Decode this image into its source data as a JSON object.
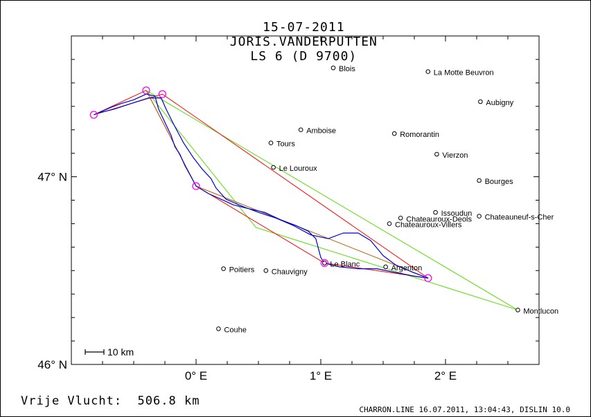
{
  "header": {
    "date": "15-07-2011",
    "pilot": "JORIS.VANDERPUTTEN",
    "glider": "LS 6 (D 9700)"
  },
  "footer": {
    "free_flight_label": "Vrije Vlucht:",
    "free_flight_value": "506.8 km",
    "credit": "CHARRON.LINE 16.07.2011, 13:04:43, DISLIN 10.0"
  },
  "map": {
    "scale_label": "10 km",
    "lat_labels": [
      {
        "text": "47° N",
        "lat": 47.0
      },
      {
        "text": "46° N",
        "lat": 46.0
      }
    ],
    "lon_labels": [
      {
        "text": "0° E",
        "lon": 0.0
      },
      {
        "text": "1° E",
        "lon": 1.0
      },
      {
        "text": "2° E",
        "lon": 2.0
      }
    ],
    "bounds": {
      "lon_min": -1.0,
      "lon_max": 2.75,
      "lat_min": 46.0,
      "lat_max": 47.75
    },
    "cities": [
      {
        "name": "Blois",
        "lon": 1.1,
        "lat": 47.58
      },
      {
        "name": "La Motte Beuvron",
        "lon": 1.86,
        "lat": 47.56
      },
      {
        "name": "Aubigny",
        "lon": 2.28,
        "lat": 47.4
      },
      {
        "name": "Amboise",
        "lon": 0.84,
        "lat": 47.25
      },
      {
        "name": "Romorantin",
        "lon": 1.59,
        "lat": 47.23
      },
      {
        "name": "Tours",
        "lon": 0.6,
        "lat": 47.18
      },
      {
        "name": "Vierzon",
        "lon": 1.93,
        "lat": 47.12
      },
      {
        "name": "Le Louroux",
        "lon": 0.62,
        "lat": 47.05
      },
      {
        "name": "Bourges",
        "lon": 2.27,
        "lat": 46.98
      },
      {
        "name": "Issoudun",
        "lon": 1.92,
        "lat": 46.81
      },
      {
        "name": "Chateauneuf-s-Cher",
        "lon": 2.27,
        "lat": 46.79
      },
      {
        "name": "Chateauroux-Deols",
        "lon": 1.64,
        "lat": 46.78
      },
      {
        "name": "Chateauroux-Villers",
        "lon": 1.55,
        "lat": 46.75
      },
      {
        "name": "Le Blanc",
        "lon": 1.03,
        "lat": 46.54
      },
      {
        "name": "Argenton",
        "lon": 1.52,
        "lat": 46.52
      },
      {
        "name": "Poitiers",
        "lon": 0.22,
        "lat": 46.51
      },
      {
        "name": "Chauvigny",
        "lon": 0.56,
        "lat": 46.5
      },
      {
        "name": "Montlucon",
        "lon": 2.58,
        "lat": 46.29
      },
      {
        "name": "Couhe",
        "lon": 0.18,
        "lat": 46.19
      }
    ],
    "turnpoints": [
      {
        "lon": -0.82,
        "lat": 47.33
      },
      {
        "lon": -0.4,
        "lat": 47.46
      },
      {
        "lon": -0.27,
        "lat": 47.44
      },
      {
        "lon": 0.0,
        "lat": 46.95
      },
      {
        "lon": 1.03,
        "lat": 46.54
      },
      {
        "lon": 1.86,
        "lat": 46.46
      }
    ],
    "task_red": [
      {
        "lon": -0.82,
        "lat": 47.33
      },
      {
        "lon": -0.4,
        "lat": 47.46
      },
      {
        "lon": 0.0,
        "lat": 46.95
      },
      {
        "lon": 1.03,
        "lat": 46.54
      },
      {
        "lon": 1.86,
        "lat": 46.46
      },
      {
        "lon": -0.27,
        "lat": 47.44
      },
      {
        "lon": -0.82,
        "lat": 47.33
      }
    ],
    "task_orange": [
      {
        "lon": -0.4,
        "lat": 47.46
      },
      {
        "lon": 0.0,
        "lat": 46.95
      },
      {
        "lon": 1.86,
        "lat": 46.46
      }
    ],
    "task_green": [
      {
        "lon": -0.4,
        "lat": 47.46
      },
      {
        "lon": 0.48,
        "lat": 46.73
      },
      {
        "lon": 2.58,
        "lat": 46.29
      },
      {
        "lon": -0.4,
        "lat": 47.46
      }
    ],
    "track_blue": [
      {
        "lon": -0.82,
        "lat": 47.33
      },
      {
        "lon": -0.75,
        "lat": 47.35
      },
      {
        "lon": -0.68,
        "lat": 47.37
      },
      {
        "lon": -0.6,
        "lat": 47.39
      },
      {
        "lon": -0.5,
        "lat": 47.41
      },
      {
        "lon": -0.4,
        "lat": 47.44
      },
      {
        "lon": -0.33,
        "lat": 47.43
      },
      {
        "lon": -0.3,
        "lat": 47.36
      },
      {
        "lon": -0.25,
        "lat": 47.29
      },
      {
        "lon": -0.2,
        "lat": 47.22
      },
      {
        "lon": -0.17,
        "lat": 47.16
      },
      {
        "lon": -0.13,
        "lat": 47.12
      },
      {
        "lon": -0.09,
        "lat": 47.06
      },
      {
        "lon": -0.04,
        "lat": 47.0
      },
      {
        "lon": 0.0,
        "lat": 46.95
      },
      {
        "lon": 0.1,
        "lat": 46.91
      },
      {
        "lon": 0.2,
        "lat": 46.88
      },
      {
        "lon": 0.3,
        "lat": 46.85
      },
      {
        "lon": 0.42,
        "lat": 46.83
      },
      {
        "lon": 0.55,
        "lat": 46.81
      },
      {
        "lon": 0.68,
        "lat": 46.77
      },
      {
        "lon": 0.8,
        "lat": 46.74
      },
      {
        "lon": 0.9,
        "lat": 46.71
      },
      {
        "lon": 0.96,
        "lat": 46.67
      },
      {
        "lon": 0.98,
        "lat": 46.62
      },
      {
        "lon": 1.0,
        "lat": 46.57
      },
      {
        "lon": 1.03,
        "lat": 46.54
      },
      {
        "lon": 1.15,
        "lat": 46.52
      },
      {
        "lon": 1.3,
        "lat": 46.51
      },
      {
        "lon": 1.45,
        "lat": 46.51
      },
      {
        "lon": 1.6,
        "lat": 46.49
      },
      {
        "lon": 1.75,
        "lat": 46.47
      },
      {
        "lon": 1.86,
        "lat": 46.46
      },
      {
        "lon": 1.74,
        "lat": 46.49
      },
      {
        "lon": 1.6,
        "lat": 46.53
      },
      {
        "lon": 1.5,
        "lat": 46.58
      },
      {
        "lon": 1.4,
        "lat": 46.66
      },
      {
        "lon": 1.3,
        "lat": 46.7
      },
      {
        "lon": 1.18,
        "lat": 46.7
      },
      {
        "lon": 1.06,
        "lat": 46.67
      },
      {
        "lon": 0.92,
        "lat": 46.69
      },
      {
        "lon": 0.78,
        "lat": 46.74
      },
      {
        "lon": 0.64,
        "lat": 46.78
      },
      {
        "lon": 0.5,
        "lat": 46.81
      },
      {
        "lon": 0.38,
        "lat": 46.84
      },
      {
        "lon": 0.24,
        "lat": 46.88
      },
      {
        "lon": 0.16,
        "lat": 46.94
      },
      {
        "lon": 0.12,
        "lat": 46.99
      },
      {
        "lon": 0.05,
        "lat": 47.04
      },
      {
        "lon": -0.02,
        "lat": 47.1
      },
      {
        "lon": -0.1,
        "lat": 47.18
      },
      {
        "lon": -0.18,
        "lat": 47.28
      },
      {
        "lon": -0.24,
        "lat": 47.36
      },
      {
        "lon": -0.28,
        "lat": 47.42
      },
      {
        "lon": -0.38,
        "lat": 47.42
      },
      {
        "lon": -0.52,
        "lat": 47.39
      },
      {
        "lon": -0.66,
        "lat": 47.36
      },
      {
        "lon": -0.78,
        "lat": 47.34
      }
    ],
    "colors": {
      "task": "#ff0000",
      "leg": "#b06000",
      "triangle": "#55dd00",
      "track": "#0000cc",
      "turnpoint": "#ff00ff"
    }
  }
}
